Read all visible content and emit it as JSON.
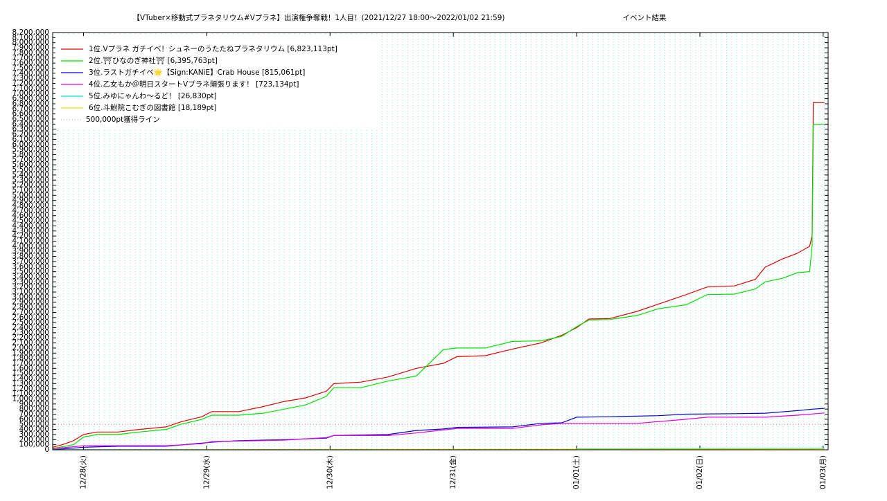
{
  "chart_data": {
    "type": "line",
    "title": "【VTuber×移動式プラネタリウム#Vプラネ】出演権争奪戦！1人目！(2021/12/27 18:00～2022/01/02 21:59)",
    "subtitle": "イベント結果",
    "xlim": [
      -0.25,
      6.04
    ],
    "xticks": [
      {
        "value": 0,
        "label": "12/28(火)"
      },
      {
        "value": 1,
        "label": "12/29(水)"
      },
      {
        "value": 2,
        "label": "12/30(木)"
      },
      {
        "value": 3,
        "label": "12/31(金)"
      },
      {
        "value": 4,
        "label": "01/01(土)"
      },
      {
        "value": 5,
        "label": "01/02(日)"
      },
      {
        "value": 6,
        "label": "01/03(月)"
      }
    ],
    "ylim": [
      0,
      8200000
    ],
    "yticks": [
      0,
      {
        "value": 100000,
        "label": "100,000"
      },
      {
        "value": 200000,
        "label": "200,000"
      },
      {
        "value": 300000,
        "label": "300,000"
      },
      {
        "value": 400000,
        "label": "400,000"
      },
      {
        "value": 500000,
        "label": "500,000"
      },
      {
        "value": 600000,
        "label": "600,000"
      },
      {
        "value": 700000,
        "label": "700,000"
      },
      {
        "value": 800000,
        "label": "800,000"
      },
      {
        "value": 900000,
        "label": "900,000"
      },
      {
        "value": 1000000,
        "label": "1,000,000"
      },
      {
        "value": 1100000,
        "label": "1,100,000"
      },
      {
        "value": 1200000,
        "label": "1,200,000"
      },
      {
        "value": 1300000,
        "label": "1,300,000"
      },
      {
        "value": 1400000,
        "label": "1,400,000"
      },
      {
        "value": 1500000,
        "label": "1,500,000"
      },
      {
        "value": 1600000,
        "label": "1,600,000"
      },
      {
        "value": 1700000,
        "label": "1,700,000"
      },
      {
        "value": 1800000,
        "label": "1,800,000"
      },
      {
        "value": 1900000,
        "label": "1,900,000"
      },
      {
        "value": 2000000,
        "label": "2,000,000"
      },
      {
        "value": 2100000,
        "label": "2,100,000"
      },
      {
        "value": 2200000,
        "label": "2,200,000"
      },
      {
        "value": 2300000,
        "label": "2,300,000"
      },
      {
        "value": 2400000,
        "label": "2,400,000"
      },
      {
        "value": 2500000,
        "label": "2,500,000"
      },
      {
        "value": 2600000,
        "label": "2,600,000"
      },
      {
        "value": 2700000,
        "label": "2,700,000"
      },
      {
        "value": 2800000,
        "label": "2,800,000"
      },
      {
        "value": 2900000,
        "label": "2,900,000"
      },
      {
        "value": 3000000,
        "label": "3,000,000"
      },
      {
        "value": 3100000,
        "label": "3,100,000"
      },
      {
        "value": 3200000,
        "label": "3,200,000"
      },
      {
        "value": 3300000,
        "label": "3,300,000"
      },
      {
        "value": 3400000,
        "label": "3,400,000"
      },
      {
        "value": 3500000,
        "label": "3,500,000"
      },
      {
        "value": 3600000,
        "label": "3,600,000"
      },
      {
        "value": 3700000,
        "label": "3,700,000"
      },
      {
        "value": 3800000,
        "label": "3,800,000"
      },
      {
        "value": 3900000,
        "label": "3,900,000"
      },
      {
        "value": 4000000,
        "label": "4,000,000"
      },
      {
        "value": 4100000,
        "label": "4,100,000"
      },
      {
        "value": 4200000,
        "label": "4,200,000"
      },
      {
        "value": 4300000,
        "label": "4,300,000"
      },
      {
        "value": 4400000,
        "label": "4,400,000"
      },
      {
        "value": 4500000,
        "label": "4,500,000"
      },
      {
        "value": 4600000,
        "label": "4,600,000"
      },
      {
        "value": 4700000,
        "label": "4,700,000"
      },
      {
        "value": 4800000,
        "label": "4,800,000"
      },
      {
        "value": 4900000,
        "label": "4,900,000"
      },
      {
        "value": 5000000,
        "label": "5,000,000"
      },
      {
        "value": 5100000,
        "label": "5,100,000"
      },
      {
        "value": 5200000,
        "label": "5,200,000"
      },
      {
        "value": 5300000,
        "label": "5,300,000"
      },
      {
        "value": 5400000,
        "label": "5,400,000"
      },
      {
        "value": 5500000,
        "label": "5,500,000"
      },
      {
        "value": 5600000,
        "label": "5,600,000"
      },
      {
        "value": 5700000,
        "label": "5,700,000"
      },
      {
        "value": 5800000,
        "label": "5,800,000"
      },
      {
        "value": 5900000,
        "label": "5,900,000"
      },
      {
        "value": 6000000,
        "label": "6,000,000"
      },
      {
        "value": 6100000,
        "label": "6,100,000"
      },
      {
        "value": 6200000,
        "label": "6,200,000"
      },
      {
        "value": 6300000,
        "label": "6,300,000"
      },
      {
        "value": 6400000,
        "label": "6,400,000"
      },
      {
        "value": 6500000,
        "label": "6,500,000"
      },
      {
        "value": 6600000,
        "label": "6,600,000"
      },
      {
        "value": 6700000,
        "label": "6,700,000"
      },
      {
        "value": 6800000,
        "label": "6,800,000"
      },
      {
        "value": 6900000,
        "label": "6,900,000"
      },
      {
        "value": 7000000,
        "label": "7,000,000"
      },
      {
        "value": 7100000,
        "label": "7,100,000"
      },
      {
        "value": 7200000,
        "label": "7,200,000"
      },
      {
        "value": 7300000,
        "label": "7,300,000"
      },
      {
        "value": 7400000,
        "label": "7,400,000"
      },
      {
        "value": 7500000,
        "label": "7,500,000"
      },
      {
        "value": 7600000,
        "label": "7,600,000"
      },
      {
        "value": 7700000,
        "label": "7,700,000"
      },
      {
        "value": 7800000,
        "label": "7,800,000"
      },
      {
        "value": 7900000,
        "label": "7,900,000"
      },
      {
        "value": 8000000,
        "label": "8,000,000"
      },
      {
        "value": 8100000,
        "label": "8,100,000"
      },
      {
        "value": 8200000,
        "label": "8,200,000"
      }
    ],
    "legend": "upper left",
    "series": [
      {
        "name": "1位.Vプラネ ガチイベ！シュネーのうたたねプラネタリウム [6,823,113pt]",
        "color": "#e00000",
        "x": [
          -0.25,
          -0.17,
          -0.08,
          0,
          0.11,
          0.28,
          0.45,
          0.67,
          0.79,
          0.96,
          1.04,
          1.26,
          1.46,
          1.63,
          1.8,
          1.97,
          2.03,
          2.25,
          2.47,
          2.7,
          2.92,
          3.03,
          3.26,
          3.48,
          3.71,
          3.88,
          4,
          4.1,
          4.27,
          4.49,
          4.66,
          4.89,
          5.06,
          5.28,
          5.45,
          5.53,
          5.67,
          5.79,
          5.89,
          5.91,
          5.92,
          6.01
        ],
        "values": [
          50000,
          100000,
          180000,
          300000,
          350000,
          350000,
          400000,
          450000,
          550000,
          650000,
          750000,
          750000,
          850000,
          950000,
          1020000,
          1150000,
          1300000,
          1330000,
          1430000,
          1600000,
          1700000,
          1830000,
          1850000,
          1980000,
          2100000,
          2250000,
          2400000,
          2570000,
          2580000,
          2720000,
          2860000,
          3050000,
          3200000,
          3220000,
          3350000,
          3590000,
          3750000,
          3860000,
          4000000,
          4200000,
          6823113,
          6823113
        ]
      },
      {
        "name": "2位.⛩ひなのぎ神社⛩ [6,395,763pt]",
        "color": "#00e000",
        "x": [
          -0.25,
          -0.17,
          -0.08,
          0,
          0.11,
          0.28,
          0.45,
          0.67,
          0.79,
          0.96,
          1.04,
          1.26,
          1.46,
          1.63,
          1.8,
          1.97,
          2.03,
          2.25,
          2.47,
          2.7,
          2.92,
          3.03,
          3.26,
          3.48,
          3.71,
          3.88,
          4,
          4.1,
          4.27,
          4.49,
          4.66,
          4.89,
          5.06,
          5.28,
          5.45,
          5.53,
          5.67,
          5.79,
          5.89,
          5.91,
          5.92,
          6.01
        ],
        "values": [
          30000,
          60000,
          100000,
          250000,
          300000,
          300000,
          350000,
          400000,
          500000,
          600000,
          680000,
          680000,
          720000,
          800000,
          880000,
          1050000,
          1220000,
          1220000,
          1350000,
          1450000,
          1970000,
          2000000,
          2000000,
          2130000,
          2140000,
          2230000,
          2420000,
          2550000,
          2560000,
          2640000,
          2770000,
          2850000,
          3050000,
          3060000,
          3160000,
          3300000,
          3370000,
          3480000,
          3500000,
          4000000,
          6395763,
          6395763
        ]
      },
      {
        "name": "3位.ラストガチイベ🌟【Sign:KANiE】Crab House [815,061pt]",
        "color": "#0000d0",
        "x": [
          -0.25,
          0,
          0.28,
          0.67,
          0.96,
          1.04,
          1.26,
          1.63,
          1.97,
          2.03,
          2.47,
          2.7,
          2.92,
          3.03,
          3.48,
          3.71,
          3.88,
          4,
          4.27,
          4.66,
          4.89,
          5.28,
          5.53,
          5.79,
          5.92,
          6.01
        ],
        "values": [
          0,
          50000,
          70000,
          70000,
          130000,
          150000,
          180000,
          200000,
          230000,
          280000,
          300000,
          380000,
          410000,
          440000,
          450000,
          520000,
          530000,
          640000,
          650000,
          670000,
          700000,
          710000,
          720000,
          770000,
          800000,
          815061
        ]
      },
      {
        "name": "4位.乙女もか＠明日スタートVプラネ頑張ります！ [723,134pt]",
        "color": "#e000e0",
        "x": [
          -0.25,
          0,
          0.67,
          0.96,
          1.04,
          1.63,
          1.97,
          2.03,
          2.47,
          2.7,
          3.03,
          3.48,
          3.71,
          3.88,
          4.49,
          4.89,
          5.06,
          5.53,
          5.79,
          6.01
        ],
        "values": [
          20000,
          80000,
          80000,
          120000,
          160000,
          190000,
          240000,
          280000,
          280000,
          330000,
          420000,
          420000,
          490000,
          520000,
          520000,
          600000,
          640000,
          640000,
          680000,
          723134
        ]
      },
      {
        "name": "5位.みゆにゃんわ〜るど！ [26,830pt]",
        "color": "#00e0e0",
        "x": [
          -0.25,
          4,
          4.01,
          6.01
        ],
        "values": [
          0,
          0,
          20000,
          26830
        ]
      },
      {
        "name": "6位.斗鮒院こむぎの図書館 [18,189pt]",
        "color": "#e0e000",
        "x": [
          -0.25,
          6.01
        ],
        "values": [
          0,
          18189
        ]
      }
    ],
    "reference_line": {
      "value": 500000,
      "label": "500,000pt獲得ライン",
      "color": "#e08080"
    }
  }
}
